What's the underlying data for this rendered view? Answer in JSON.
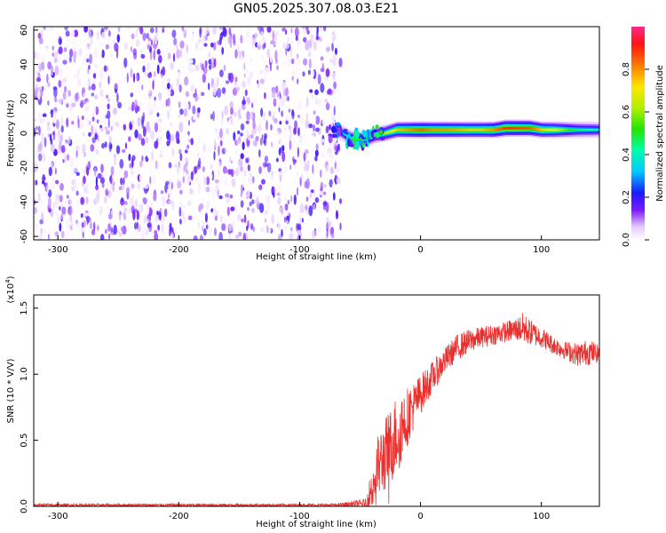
{
  "chart_data": [
    {
      "type": "heatmap",
      "title": "GN05.2025.307.08.03.E21",
      "xlabel": "Height of straight line (km)",
      "ylabel": "Frequency (Hz)",
      "xlim": [
        -320,
        148
      ],
      "ylim": [
        -62,
        62
      ],
      "x_ticks": [
        -300,
        -200,
        -100,
        0,
        100
      ],
      "y_ticks": [
        -60,
        -40,
        -20,
        0,
        20,
        40,
        60
      ],
      "colorbar": {
        "label": "Normalized spectral amplitude",
        "range": [
          0.0,
          1.0
        ],
        "ticks": [
          "0.0",
          "0.2",
          "0.4",
          "0.6",
          "0.8"
        ],
        "tick_values": [
          0.0,
          0.2,
          0.4,
          0.6,
          0.8
        ]
      },
      "features": {
        "noise_region_x": [
          -320,
          -66
        ],
        "noise_amplitude": [
          0.0,
          0.2
        ],
        "signal_start_x": -70,
        "signal_track": {
          "x": [
            -72,
            -65,
            -58,
            -52,
            -45,
            -38,
            -30,
            -20,
            -10,
            0,
            10,
            20,
            30,
            40,
            50,
            60,
            70,
            80,
            90,
            100,
            110,
            120,
            130,
            148
          ],
          "freq": [
            2,
            0,
            -3,
            -4,
            -3,
            -1,
            0,
            2,
            2,
            2,
            2,
            2,
            2,
            2,
            2,
            2,
            3,
            3,
            3,
            2,
            2,
            2,
            2,
            2
          ],
          "amplitude": [
            0.2,
            0.3,
            0.45,
            0.55,
            0.5,
            0.55,
            0.6,
            0.75,
            0.8,
            0.85,
            0.8,
            0.8,
            0.78,
            0.75,
            0.75,
            0.8,
            0.9,
            0.88,
            0.85,
            0.75,
            0.7,
            0.55,
            0.45,
            0.4
          ]
        }
      }
    },
    {
      "type": "line",
      "title": "",
      "xlabel": "Height of straight line (km)",
      "ylabel": "SNR (10 * V/V)",
      "y_multiplier_label": "(x10",
      "y_multiplier_exp": "4",
      "y_multiplier_close": ")",
      "xlim": [
        -320,
        148
      ],
      "ylim": [
        0.0,
        1.6
      ],
      "x_ticks": [
        -300,
        -200,
        -100,
        0,
        100
      ],
      "y_ticks": [
        0.0,
        0.5,
        1.0,
        1.5
      ],
      "y_tick_labels": [
        "0.0",
        "0.5",
        "1.0",
        "1.5"
      ],
      "series": [
        {
          "color": "#e8312f",
          "x": [
            -320,
            -250,
            -150,
            -70,
            -45,
            -40,
            -35,
            -30,
            -25,
            -20,
            -15,
            -10,
            -5,
            0,
            10,
            20,
            30,
            40,
            50,
            60,
            70,
            80,
            85,
            90,
            100,
            110,
            120,
            130,
            140,
            148
          ],
          "y": [
            0.01,
            0.01,
            0.01,
            0.01,
            0.02,
            0.15,
            0.3,
            0.38,
            0.45,
            0.55,
            0.62,
            0.7,
            0.77,
            0.85,
            0.98,
            1.1,
            1.2,
            1.25,
            1.28,
            1.3,
            1.32,
            1.34,
            1.35,
            1.32,
            1.28,
            1.22,
            1.18,
            1.15,
            1.17,
            1.15
          ],
          "noise_amp": [
            0.01,
            0.01,
            0.01,
            0.01,
            0.04,
            0.18,
            0.25,
            0.28,
            0.3,
            0.3,
            0.28,
            0.22,
            0.18,
            0.15,
            0.12,
            0.1,
            0.1,
            0.09,
            0.08,
            0.08,
            0.08,
            0.09,
            0.12,
            0.1,
            0.08,
            0.07,
            0.07,
            0.09,
            0.1,
            0.06
          ]
        }
      ]
    }
  ]
}
